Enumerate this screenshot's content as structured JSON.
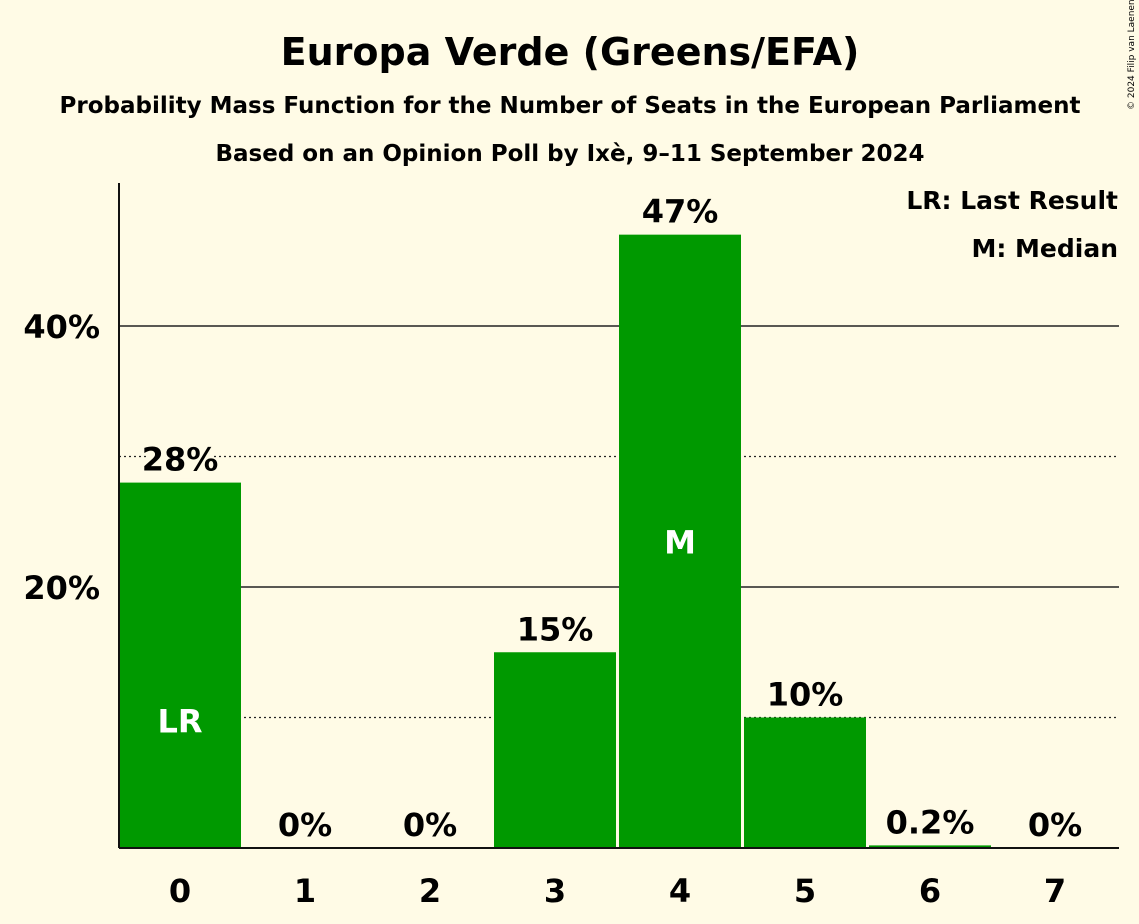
{
  "chart_data": {
    "type": "bar",
    "title": "Europa Verde (Greens/EFA)",
    "subtitle": "Probability Mass Function for the Number of Seats in the European Parliament",
    "subtitle2": "Based on an Opinion Poll by Ixè, 9–11 September 2024",
    "categories": [
      "0",
      "1",
      "2",
      "3",
      "4",
      "5",
      "6",
      "7"
    ],
    "values": [
      28,
      0,
      0,
      15,
      47,
      10,
      0.2,
      0
    ],
    "value_labels": [
      "28%",
      "0%",
      "0%",
      "15%",
      "47%",
      "10%",
      "0.2%",
      "0%"
    ],
    "ylim": [
      0,
      51
    ],
    "yticks": [
      {
        "value": 20,
        "label": "20%"
      },
      {
        "value": 40,
        "label": "40%"
      }
    ],
    "minor_gridlines": [
      10,
      30
    ],
    "xlabel": "",
    "ylabel": "",
    "markers": [
      {
        "category": "0",
        "text": "LR"
      },
      {
        "category": "4",
        "text": "M"
      }
    ],
    "legend": [
      "LR: Last Result",
      "M: Median"
    ],
    "legend_position": "top-right",
    "bar_color": "#009900",
    "background_color": "#fffbe6",
    "copyright": "© 2024 Filip van Laenen"
  }
}
